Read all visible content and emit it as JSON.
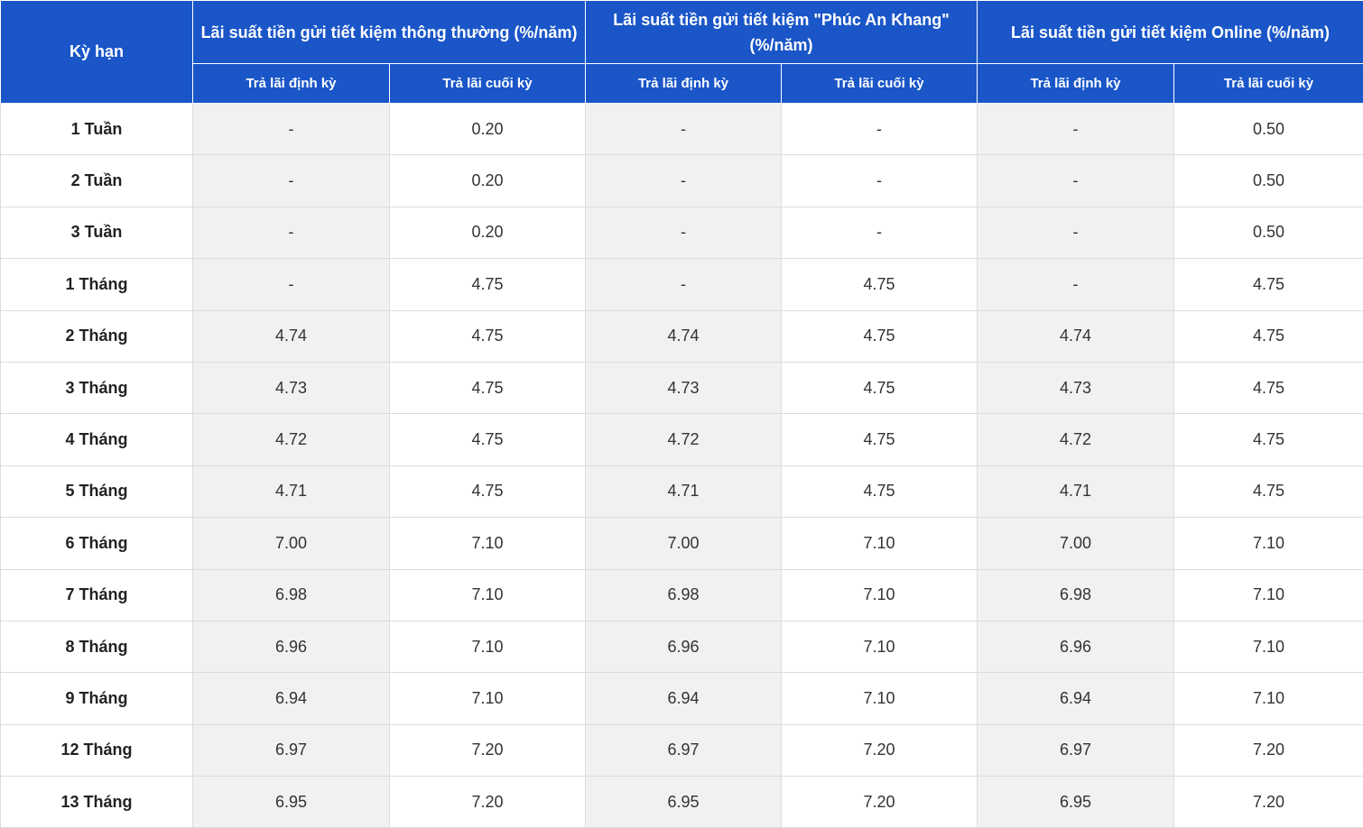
{
  "table": {
    "term_header": "Kỳ hạn",
    "groups": [
      "Lãi suất tiền gửi tiết kiệm thông thường (%/năm)",
      "Lãi suất tiền gửi tiết kiệm \"Phúc An Khang\" (%/năm)",
      "Lãi suất tiền gửi tiết kiệm Online (%/năm)"
    ],
    "subheaders": [
      "Trả lãi định kỳ",
      "Trả lãi cuối kỳ",
      "Trả lãi định kỳ",
      "Trả lãi cuối kỳ",
      "Trả lãi định kỳ",
      "Trả lãi cuối kỳ"
    ],
    "rows": [
      [
        "1 Tuần",
        "-",
        "0.20",
        "-",
        "-",
        "-",
        "0.50"
      ],
      [
        "2 Tuần",
        "-",
        "0.20",
        "-",
        "-",
        "-",
        "0.50"
      ],
      [
        "3 Tuần",
        "-",
        "0.20",
        "-",
        "-",
        "-",
        "0.50"
      ],
      [
        "1 Tháng",
        "-",
        "4.75",
        "-",
        "4.75",
        "-",
        "4.75"
      ],
      [
        "2 Tháng",
        "4.74",
        "4.75",
        "4.74",
        "4.75",
        "4.74",
        "4.75"
      ],
      [
        "3 Tháng",
        "4.73",
        "4.75",
        "4.73",
        "4.75",
        "4.73",
        "4.75"
      ],
      [
        "4 Tháng",
        "4.72",
        "4.75",
        "4.72",
        "4.75",
        "4.72",
        "4.75"
      ],
      [
        "5 Tháng",
        "4.71",
        "4.75",
        "4.71",
        "4.75",
        "4.71",
        "4.75"
      ],
      [
        "6 Tháng",
        "7.00",
        "7.10",
        "7.00",
        "7.10",
        "7.00",
        "7.10"
      ],
      [
        "7 Tháng",
        "6.98",
        "7.10",
        "6.98",
        "7.10",
        "6.98",
        "7.10"
      ],
      [
        "8 Tháng",
        "6.96",
        "7.10",
        "6.96",
        "7.10",
        "6.96",
        "7.10"
      ],
      [
        "9 Tháng",
        "6.94",
        "7.10",
        "6.94",
        "7.10",
        "6.94",
        "7.10"
      ],
      [
        "12 Tháng",
        "6.97",
        "7.20",
        "6.97",
        "7.20",
        "6.97",
        "7.20"
      ],
      [
        "13 Tháng",
        "6.95",
        "7.20",
        "6.95",
        "7.20",
        "6.95",
        "7.20"
      ]
    ]
  }
}
